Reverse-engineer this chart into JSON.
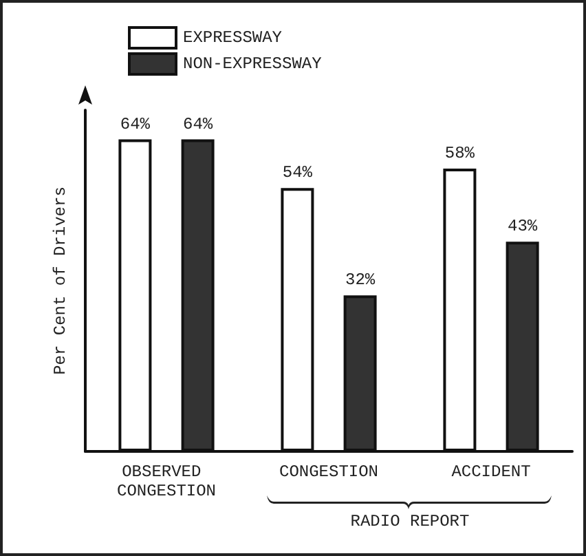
{
  "chart_data": {
    "type": "bar",
    "ylabel": "Per Cent of Drivers",
    "categories": [
      "OBSERVED CONGESTION",
      "CONGESTION",
      "ACCIDENT"
    ],
    "series": [
      {
        "name": "EXPRESSWAY",
        "color": "#ffffff",
        "values": [
          64,
          54,
          58
        ],
        "value_labels": [
          "64%",
          "54%",
          "58%"
        ]
      },
      {
        "name": "NON-EXPRESSWAY",
        "color": "#333333",
        "values": [
          64,
          32,
          43
        ],
        "value_labels": [
          "64%",
          "32%",
          "43%"
        ]
      }
    ],
    "annotations": [
      "RADIO REPORT"
    ],
    "tick_labels": "x",
    "grid": false,
    "legend": "top left"
  }
}
